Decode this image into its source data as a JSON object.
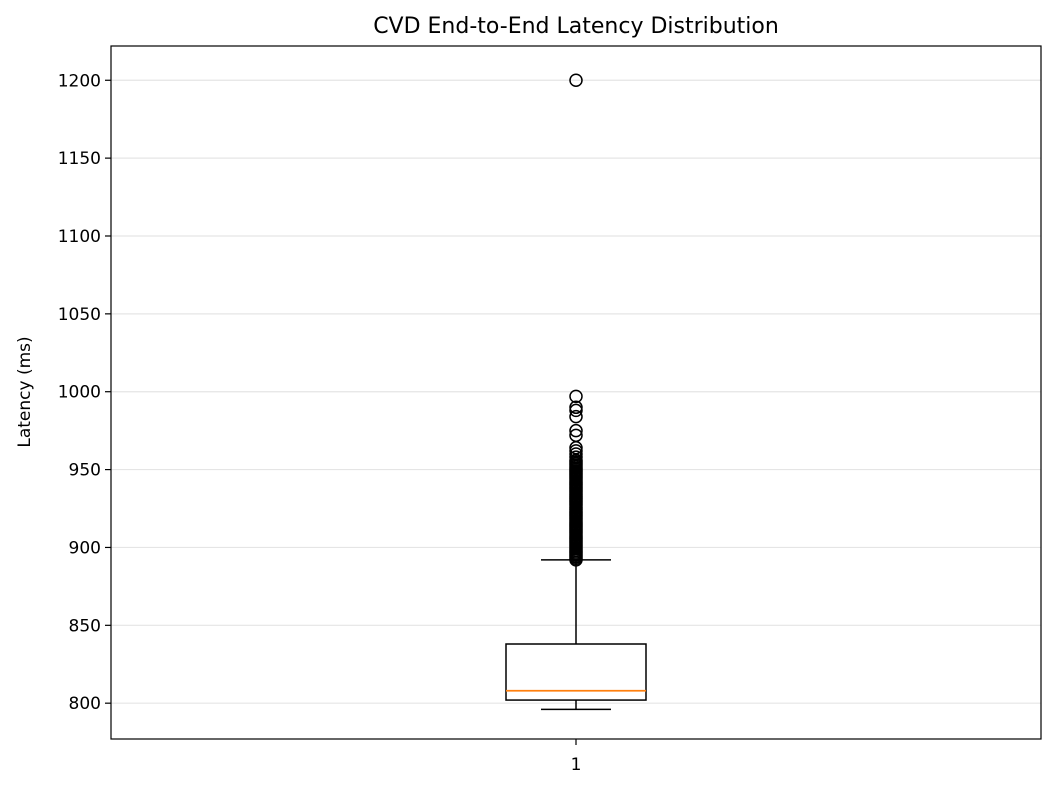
{
  "chart_data": {
    "type": "boxplot",
    "title": "CVD End-to-End Latency Distribution",
    "xlabel": "",
    "ylabel": "Latency (ms)",
    "categories": [
      "1"
    ],
    "ylim": [
      777,
      1222
    ],
    "yticks": [
      800,
      850,
      900,
      950,
      1000,
      1050,
      1100,
      1150,
      1200
    ],
    "grid": "y",
    "boxes": [
      {
        "category": "1",
        "whisker_low": 796,
        "q1": 802,
        "median": 808,
        "q3": 838,
        "whisker_high": 892,
        "outliers": [
          892,
          893,
          894,
          895,
          896,
          897,
          898,
          899,
          900,
          901,
          902,
          903,
          904,
          905,
          906,
          907,
          908,
          909,
          910,
          911,
          912,
          913,
          914,
          915,
          916,
          917,
          918,
          919,
          920,
          921,
          922,
          923,
          924,
          925,
          926,
          927,
          928,
          929,
          930,
          931,
          932,
          933,
          934,
          935,
          936,
          937,
          938,
          939,
          940,
          941,
          942,
          943,
          944,
          945,
          946,
          947,
          948,
          949,
          950,
          951,
          952,
          953,
          954,
          955,
          956,
          958,
          960,
          962,
          964,
          972,
          975,
          984,
          988,
          990,
          997,
          1200
        ]
      }
    ],
    "colors": {
      "box": "#000000",
      "median": "#ff7f0e",
      "grid": "#e5e5e5"
    }
  }
}
